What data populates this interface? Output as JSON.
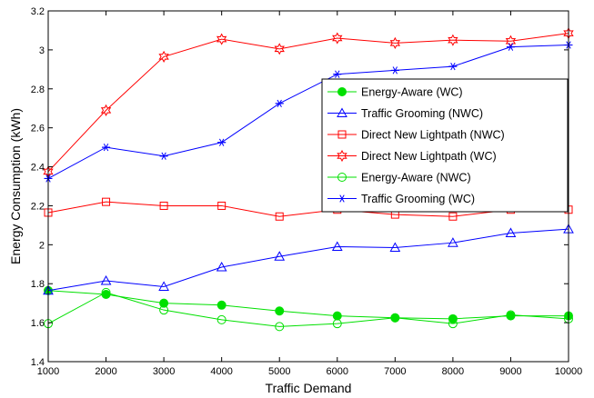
{
  "chart_data": {
    "type": "line",
    "title": "",
    "xlabel": "Traffic Demand",
    "ylabel": "Energy Consumption (kWh)",
    "xlim": [
      1000,
      10000
    ],
    "ylim": [
      1.4,
      3.2
    ],
    "xticks": [
      "1000",
      "2000",
      "3000",
      "4000",
      "5000",
      "6000",
      "7000",
      "8000",
      "9000",
      "10000"
    ],
    "yticks": [
      "1.4",
      "1.6",
      "1.8",
      "2",
      "2.2",
      "2.4",
      "2.6",
      "2.8",
      "3",
      "3.2"
    ],
    "grid": false,
    "legend_position": "center-right",
    "x": [
      1000,
      2000,
      3000,
      4000,
      5000,
      6000,
      7000,
      8000,
      9000,
      10000
    ],
    "series": [
      {
        "name": "Energy-Aware (WC)",
        "color": "#00e000",
        "marker": "filled-circle",
        "values": [
          1.765,
          1.745,
          1.7,
          1.69,
          1.66,
          1.635,
          1.625,
          1.62,
          1.635,
          1.635
        ]
      },
      {
        "name": "Traffic Grooming (NWC)",
        "color": "#0000ff",
        "marker": "triangle",
        "values": [
          1.765,
          1.815,
          1.785,
          1.885,
          1.94,
          1.99,
          1.985,
          2.01,
          2.06,
          2.08
        ]
      },
      {
        "name": "Direct New Lightpath (NWC)",
        "color": "#ff0000",
        "marker": "square",
        "values": [
          2.165,
          2.22,
          2.2,
          2.2,
          2.145,
          2.18,
          2.155,
          2.145,
          2.18,
          2.18
        ]
      },
      {
        "name": "Direct New Lightpath (WC)",
        "color": "#ff0000",
        "marker": "hexagram",
        "values": [
          2.375,
          2.69,
          2.965,
          3.055,
          3.005,
          3.06,
          3.035,
          3.05,
          3.045,
          3.085
        ]
      },
      {
        "name": "Energy-Aware (NWC)",
        "color": "#00e000",
        "marker": "circle",
        "values": [
          1.595,
          1.755,
          1.665,
          1.615,
          1.58,
          1.595,
          1.625,
          1.595,
          1.64,
          1.62
        ]
      },
      {
        "name": "Traffic Grooming (WC)",
        "color": "#0000ff",
        "marker": "asterisk",
        "values": [
          2.34,
          2.5,
          2.455,
          2.525,
          2.725,
          2.875,
          2.895,
          2.915,
          3.015,
          3.025
        ]
      }
    ]
  }
}
